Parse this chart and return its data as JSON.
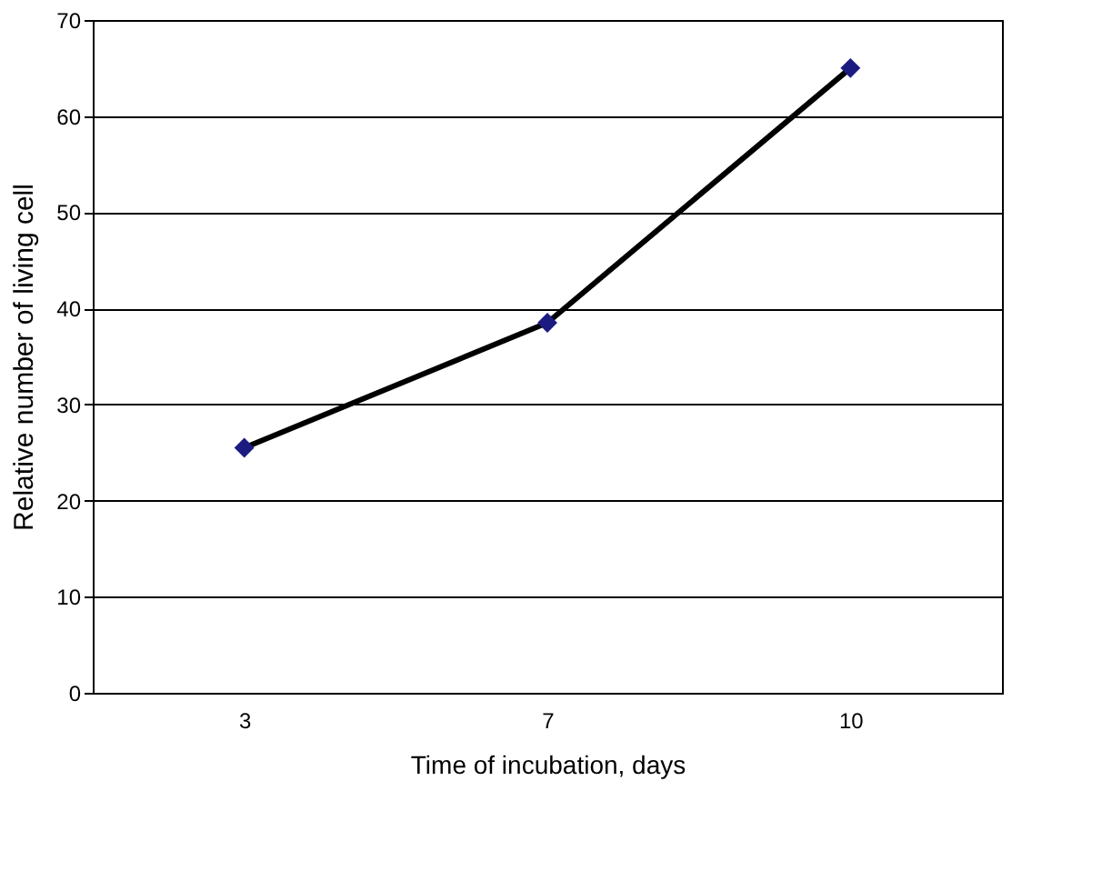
{
  "chart_data": {
    "type": "line",
    "xlabel": "Time of incubation, days",
    "ylabel": "Relative number of living cell",
    "categories": [
      "3",
      "7",
      "10"
    ],
    "series": [
      {
        "color": "#1c1c80",
        "values": [
          25.5,
          38.5,
          65
        ]
      }
    ],
    "ylim": [
      0,
      70
    ],
    "yticks": [
      0,
      10,
      20,
      30,
      40,
      50,
      60,
      70
    ],
    "grid": "y",
    "marker": "diamond",
    "line_style": "solid"
  }
}
